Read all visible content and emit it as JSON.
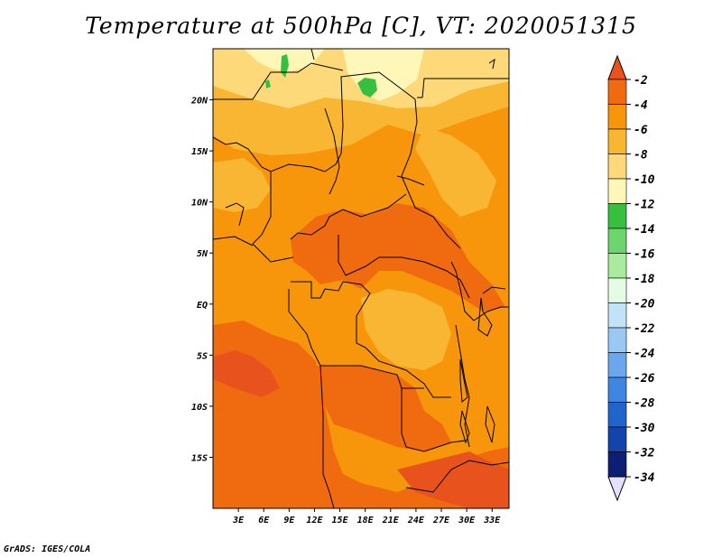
{
  "title": "Temperature at 500hPa [C], VT: 2020051315",
  "credit": "GrADS: IGES/COLA",
  "map": {
    "variable": "Temperature at 500hPa",
    "units": "C",
    "valid_time": "2020051315",
    "lon_range": [
      0,
      35
    ],
    "lat_range": [
      -20,
      25
    ],
    "x_ticks": [
      {
        "value": 3,
        "label": "3E"
      },
      {
        "value": 6,
        "label": "6E"
      },
      {
        "value": 9,
        "label": "9E"
      },
      {
        "value": 12,
        "label": "12E"
      },
      {
        "value": 15,
        "label": "15E"
      },
      {
        "value": 18,
        "label": "18E"
      },
      {
        "value": 21,
        "label": "21E"
      },
      {
        "value": 24,
        "label": "24E"
      },
      {
        "value": 27,
        "label": "27E"
      },
      {
        "value": 30,
        "label": "30E"
      },
      {
        "value": 33,
        "label": "33E"
      }
    ],
    "y_ticks": [
      {
        "value": 20,
        "label": "20N"
      },
      {
        "value": 15,
        "label": "15N"
      },
      {
        "value": 10,
        "label": "10N"
      },
      {
        "value": 5,
        "label": "5N"
      },
      {
        "value": 0,
        "label": "EQ"
      },
      {
        "value": -5,
        "label": "5S"
      },
      {
        "value": -10,
        "label": "10S"
      },
      {
        "value": -15,
        "label": "15S"
      }
    ]
  },
  "colorbar": {
    "labels": [
      "-2",
      "-4",
      "-6",
      "-8",
      "-10",
      "-12",
      "-14",
      "-16",
      "-18",
      "-20",
      "-22",
      "-24",
      "-26",
      "-28",
      "-30",
      "-32",
      "-34"
    ],
    "colors": [
      "#e8531d",
      "#f06a0f",
      "#f7960b",
      "#f9b632",
      "#fed97a",
      "#fff7b8",
      "#36c040",
      "#6dd56d",
      "#a9ec9d",
      "#e6fbe4",
      "#c1e2f7",
      "#99c8f2",
      "#6aa7ec",
      "#3f86e2",
      "#2364cc",
      "#1244ab",
      "#0c1f75"
    ],
    "top_color": "#e8531d",
    "bottom_color": "#e3e1fb"
  }
}
